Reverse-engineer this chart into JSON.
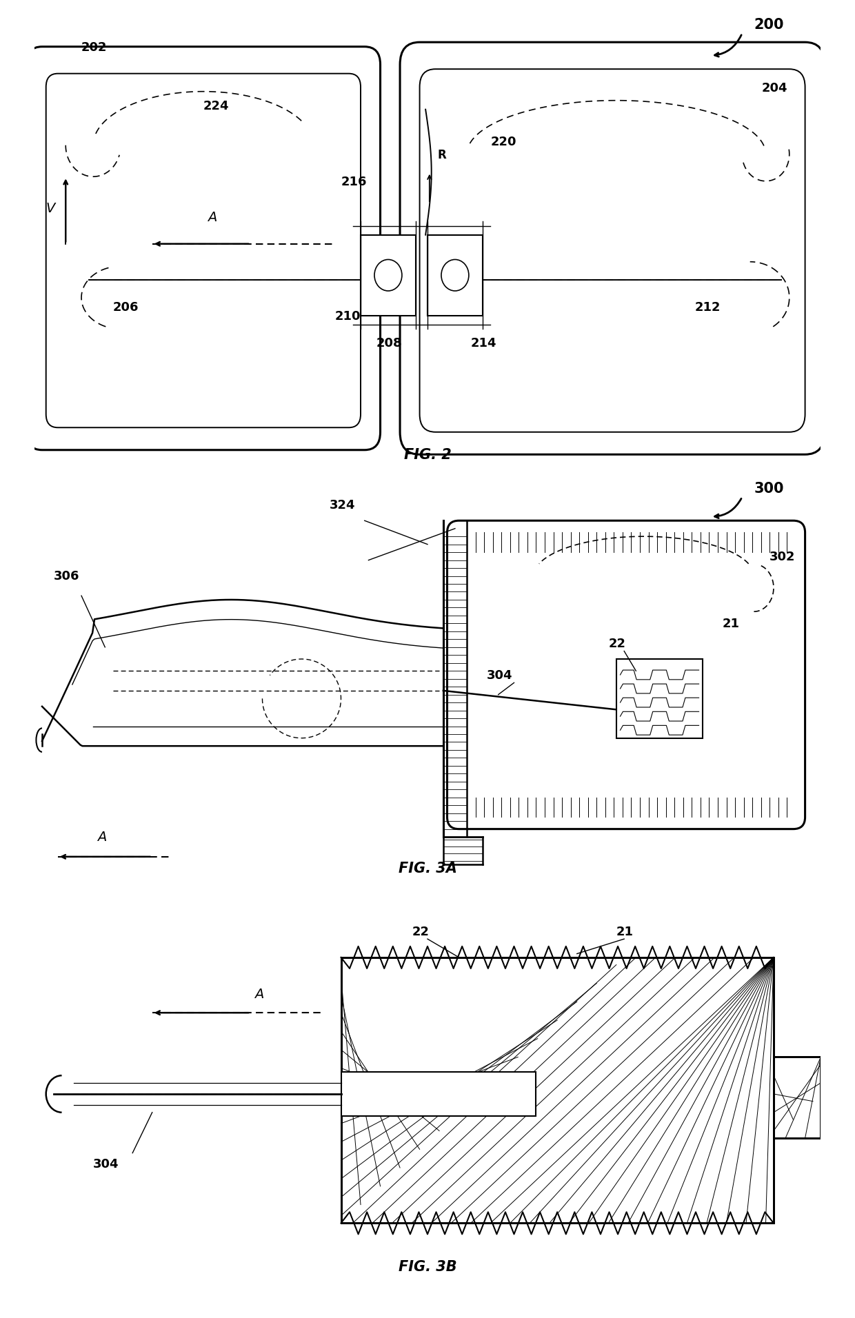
{
  "bg_color": "#ffffff",
  "line_color": "#000000",
  "fig2_label": "FIG. 2",
  "fig3a_label": "FIG. 3A",
  "fig3b_label": "FIG. 3B",
  "refs": {
    "200": "200",
    "202": "202",
    "204": "204",
    "206": "206",
    "208": "208",
    "210": "210",
    "212": "212",
    "214": "214",
    "216": "216",
    "220": "220",
    "224": "224",
    "300": "300",
    "302": "302",
    "304": "304",
    "306": "306",
    "324": "324",
    "21": "21",
    "22": "22"
  }
}
